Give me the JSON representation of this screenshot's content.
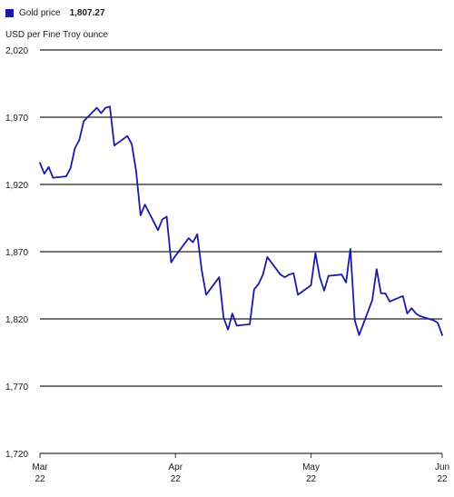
{
  "legend": {
    "label": "Gold price",
    "value": "1,807.27",
    "color": "#1a1aa6"
  },
  "unit_label": "USD per Fine Troy ounce",
  "chart_data": {
    "type": "line",
    "title": "",
    "xlabel": "",
    "ylabel": "USD per Fine Troy ounce",
    "ylim": [
      1720,
      2020
    ],
    "y_ticks": [
      "2,020",
      "1,970",
      "1,920",
      "1,870",
      "1,820",
      "1,770",
      "1,720"
    ],
    "y_tick_values": [
      2020,
      1970,
      1920,
      1870,
      1820,
      1770,
      1720
    ],
    "x_ticks": [
      {
        "date": "2022-03-01",
        "month": "Mar",
        "year": "22"
      },
      {
        "date": "2022-04-01",
        "month": "Apr",
        "year": "22"
      },
      {
        "date": "2022-05-02",
        "month": "May",
        "year": "22"
      },
      {
        "date": "2022-06-01",
        "month": "Jun",
        "year": "22"
      }
    ],
    "grid": true,
    "series": [
      {
        "name": "Gold price",
        "color": "#1a1aa6",
        "points": [
          [
            "2022-03-01",
            1936
          ],
          [
            "2022-03-02",
            1928
          ],
          [
            "2022-03-03",
            1933
          ],
          [
            "2022-03-04",
            1925
          ],
          [
            "2022-03-07",
            1926
          ],
          [
            "2022-03-08",
            1932
          ],
          [
            "2022-03-09",
            1947
          ],
          [
            "2022-03-10",
            1953
          ],
          [
            "2022-03-11",
            1967
          ],
          [
            "2022-03-14",
            1977
          ],
          [
            "2022-03-15",
            1973
          ],
          [
            "2022-03-16",
            1977
          ],
          [
            "2022-03-17",
            1978
          ],
          [
            "2022-03-18",
            1949
          ],
          [
            "2022-03-21",
            1956
          ],
          [
            "2022-03-22",
            1950
          ],
          [
            "2022-03-23",
            1930
          ],
          [
            "2022-03-24",
            1897
          ],
          [
            "2022-03-25",
            1905
          ],
          [
            "2022-03-28",
            1886
          ],
          [
            "2022-03-29",
            1894
          ],
          [
            "2022-03-30",
            1896
          ],
          [
            "2022-03-31",
            1862
          ],
          [
            "2022-04-01",
            1867
          ],
          [
            "2022-04-04",
            1880
          ],
          [
            "2022-04-05",
            1877
          ],
          [
            "2022-04-06",
            1883
          ],
          [
            "2022-04-07",
            1856
          ],
          [
            "2022-04-08",
            1838
          ],
          [
            "2022-04-11",
            1851
          ],
          [
            "2022-04-12",
            1821
          ],
          [
            "2022-04-13",
            1812
          ],
          [
            "2022-04-14",
            1824
          ],
          [
            "2022-04-15",
            1815
          ],
          [
            "2022-04-18",
            1816
          ],
          [
            "2022-04-19",
            1842
          ],
          [
            "2022-04-20",
            1846
          ],
          [
            "2022-04-21",
            1853
          ],
          [
            "2022-04-22",
            1866
          ],
          [
            "2022-04-25",
            1853
          ],
          [
            "2022-04-26",
            1851
          ],
          [
            "2022-04-27",
            1853
          ],
          [
            "2022-04-28",
            1854
          ],
          [
            "2022-04-29",
            1838
          ],
          [
            "2022-05-02",
            1845
          ],
          [
            "2022-05-03",
            1869
          ],
          [
            "2022-05-04",
            1851
          ],
          [
            "2022-05-05",
            1841
          ],
          [
            "2022-05-06",
            1852
          ],
          [
            "2022-05-09",
            1853
          ],
          [
            "2022-05-10",
            1847
          ],
          [
            "2022-05-11",
            1872
          ],
          [
            "2022-05-12",
            1819
          ],
          [
            "2022-05-13",
            1808
          ],
          [
            "2022-05-16",
            1834
          ],
          [
            "2022-05-17",
            1857
          ],
          [
            "2022-05-18",
            1839
          ],
          [
            "2022-05-19",
            1839
          ],
          [
            "2022-05-20",
            1833
          ],
          [
            "2022-05-23",
            1837
          ],
          [
            "2022-05-24",
            1824
          ],
          [
            "2022-05-25",
            1828
          ],
          [
            "2022-05-26",
            1824
          ],
          [
            "2022-05-27",
            1822
          ],
          [
            "2022-05-30",
            1819
          ],
          [
            "2022-05-31",
            1817
          ],
          [
            "2022-06-01",
            1808
          ]
        ]
      }
    ]
  }
}
